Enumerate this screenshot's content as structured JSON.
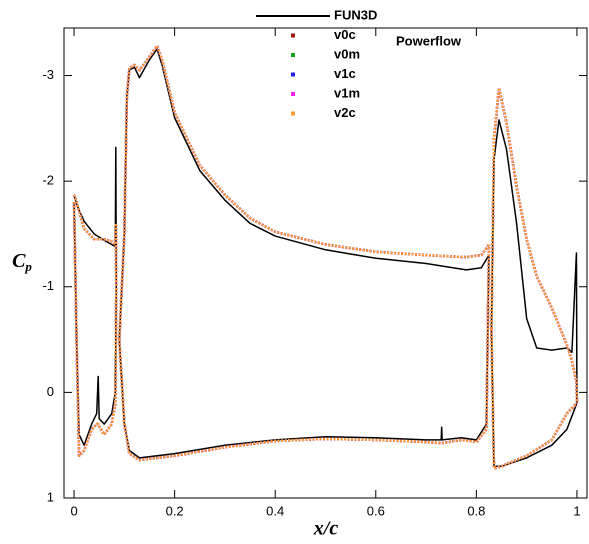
{
  "chart_data": {
    "type": "line",
    "x_label": "x/c",
    "y_label": [
      "C",
      "p"
    ],
    "annotation": "Powerflow",
    "xlim": [
      -0.02,
      1.02
    ],
    "ylim": [
      1,
      -3.45
    ],
    "xticks": [
      0,
      0.2,
      0.4,
      0.6,
      0.8,
      1
    ],
    "yticks": [
      -3,
      -2,
      -1,
      0,
      1
    ],
    "legend": "top",
    "x": [
      0,
      0.005,
      0.02,
      0.04,
      0.06,
      0.075,
      0.082,
      0.083,
      0.084,
      null,
      0.09,
      0.1,
      0.105,
      0.11,
      0.12,
      0.13,
      0.15,
      0.165,
      0.175,
      0.2,
      0.25,
      0.3,
      0.35,
      0.4,
      0.5,
      0.6,
      0.7,
      0.78,
      0.81,
      0.825,
      null,
      0.83,
      0.835,
      0.845,
      0.86,
      0.88,
      0.9,
      0.92,
      0.95,
      0.98,
      0.99,
      0.999,
      1.0,
      null,
      0,
      0.005,
      0.01,
      0.02,
      0.035,
      0.045,
      0.048,
      0.05,
      0.06,
      0.075,
      0.082,
      0.084,
      null,
      0.09,
      0.1,
      0.11,
      0.13,
      0.2,
      0.3,
      0.4,
      0.5,
      0.6,
      0.7,
      0.73,
      0.731,
      0.732,
      0.77,
      0.8,
      0.82,
      0.825,
      null,
      0.83,
      0.835,
      0.85,
      0.9,
      0.95,
      0.98,
      1.0
    ],
    "series": [
      {
        "name": "FUN3D",
        "color": "#000000",
        "style": "solid",
        "values": [
          -1.87,
          -1.78,
          -1.62,
          -1.5,
          -1.44,
          -1.4,
          -1.38,
          -2.32,
          -1.0,
          null,
          -0.5,
          -1.5,
          -2.8,
          -3.05,
          -3.08,
          -2.98,
          -3.15,
          -3.25,
          -3.1,
          -2.6,
          -2.1,
          -1.82,
          -1.6,
          -1.48,
          -1.35,
          -1.27,
          -1.22,
          -1.16,
          -1.18,
          -1.3,
          null,
          -0.6,
          -2.2,
          -2.58,
          -2.3,
          -1.6,
          -0.7,
          -0.42,
          -0.4,
          -0.42,
          -0.38,
          -1.32,
          0.1,
          null,
          -1.8,
          -0.5,
          0.4,
          0.5,
          0.3,
          0.2,
          -0.15,
          0.25,
          0.3,
          0.2,
          0.0,
          -1.0,
          null,
          -0.5,
          0.3,
          0.55,
          0.62,
          0.58,
          0.5,
          0.45,
          0.42,
          0.43,
          0.45,
          0.45,
          0.33,
          0.45,
          0.43,
          0.45,
          0.3,
          -1.3,
          null,
          -0.6,
          0.7,
          0.7,
          0.62,
          0.5,
          0.35,
          0.1
        ]
      },
      {
        "name": "v0c",
        "color": "#a01010",
        "style": "dotted",
        "values": [
          -1.87,
          -1.8,
          -1.55,
          -1.45,
          -1.45,
          -1.43,
          -1.4,
          -1.6,
          -1.0,
          null,
          -0.5,
          -1.5,
          -2.8,
          -3.07,
          -3.1,
          -3.05,
          -3.18,
          -3.28,
          -3.15,
          -2.65,
          -2.15,
          -1.87,
          -1.65,
          -1.52,
          -1.4,
          -1.33,
          -1.3,
          -1.28,
          -1.3,
          -1.4,
          null,
          -0.6,
          -2.4,
          -2.88,
          -2.55,
          -1.95,
          -1.45,
          -1.1,
          -0.8,
          -0.45,
          -0.3,
          -0.1,
          0.1,
          null,
          -1.8,
          -0.5,
          0.6,
          0.55,
          0.35,
          0.3,
          0.3,
          0.32,
          0.4,
          0.3,
          0.1,
          -1.0,
          null,
          -0.5,
          0.3,
          0.58,
          0.64,
          0.6,
          0.52,
          0.46,
          0.44,
          0.45,
          0.47,
          0.48,
          0.48,
          0.48,
          0.45,
          0.47,
          0.35,
          -1.4,
          null,
          -0.6,
          0.72,
          0.7,
          0.6,
          0.45,
          0.2,
          0.1
        ]
      },
      {
        "name": "v0m",
        "color": "#10a010",
        "style": "dotted",
        "values": [
          -1.87,
          -1.8,
          -1.55,
          -1.45,
          -1.45,
          -1.43,
          -1.4,
          -1.6,
          -1.0,
          null,
          -0.5,
          -1.5,
          -2.8,
          -3.07,
          -3.1,
          -3.05,
          -3.18,
          -3.28,
          -3.15,
          -2.65,
          -2.15,
          -1.87,
          -1.65,
          -1.52,
          -1.4,
          -1.33,
          -1.3,
          -1.28,
          -1.3,
          -1.4,
          null,
          -0.6,
          -2.4,
          -2.88,
          -2.55,
          -1.95,
          -1.45,
          -1.1,
          -0.8,
          -0.45,
          -0.3,
          -0.1,
          0.1,
          null,
          -1.8,
          -0.5,
          0.6,
          0.55,
          0.35,
          0.3,
          0.3,
          0.32,
          0.4,
          0.3,
          0.1,
          -1.0,
          null,
          -0.5,
          0.3,
          0.58,
          0.64,
          0.6,
          0.52,
          0.46,
          0.44,
          0.45,
          0.47,
          0.48,
          0.48,
          0.48,
          0.45,
          0.47,
          0.35,
          -1.4,
          null,
          -0.6,
          0.72,
          0.7,
          0.6,
          0.45,
          0.2,
          0.1
        ]
      },
      {
        "name": "v1c",
        "color": "#2020e0",
        "style": "dotted",
        "values": [
          -1.87,
          -1.8,
          -1.55,
          -1.45,
          -1.45,
          -1.43,
          -1.4,
          -1.6,
          -1.0,
          null,
          -0.5,
          -1.5,
          -2.8,
          -3.07,
          -3.1,
          -3.05,
          -3.18,
          -3.28,
          -3.15,
          -2.65,
          -2.15,
          -1.87,
          -1.65,
          -1.52,
          -1.4,
          -1.33,
          -1.3,
          -1.28,
          -1.3,
          -1.4,
          null,
          -0.6,
          -2.4,
          -2.88,
          -2.55,
          -1.95,
          -1.45,
          -1.1,
          -0.8,
          -0.45,
          -0.3,
          -0.1,
          0.1,
          null,
          -1.8,
          -0.5,
          0.6,
          0.55,
          0.35,
          0.3,
          0.3,
          0.32,
          0.4,
          0.3,
          0.1,
          -1.0,
          null,
          -0.5,
          0.3,
          0.58,
          0.64,
          0.6,
          0.52,
          0.46,
          0.44,
          0.45,
          0.47,
          0.48,
          0.48,
          0.48,
          0.45,
          0.47,
          0.35,
          -1.4,
          null,
          -0.6,
          0.72,
          0.7,
          0.6,
          0.45,
          0.2,
          0.1
        ]
      },
      {
        "name": "v1m",
        "color": "#ff20ff",
        "style": "dotted",
        "values": [
          -1.87,
          -1.8,
          -1.55,
          -1.45,
          -1.45,
          -1.43,
          -1.4,
          -1.6,
          -1.0,
          null,
          -0.5,
          -1.5,
          -2.8,
          -3.07,
          -3.1,
          -3.05,
          -3.18,
          -3.28,
          -3.15,
          -2.65,
          -2.15,
          -1.87,
          -1.65,
          -1.52,
          -1.4,
          -1.33,
          -1.3,
          -1.28,
          -1.3,
          -1.4,
          null,
          -0.6,
          -2.4,
          -2.88,
          -2.55,
          -1.95,
          -1.45,
          -1.1,
          -0.8,
          -0.45,
          -0.3,
          -0.1,
          0.1,
          null,
          -1.8,
          -0.5,
          0.6,
          0.55,
          0.35,
          0.3,
          0.3,
          0.32,
          0.4,
          0.3,
          0.1,
          -1.0,
          null,
          -0.5,
          0.3,
          0.58,
          0.64,
          0.6,
          0.52,
          0.46,
          0.44,
          0.45,
          0.47,
          0.48,
          0.48,
          0.48,
          0.45,
          0.47,
          0.35,
          -1.4,
          null,
          -0.6,
          0.72,
          0.7,
          0.6,
          0.45,
          0.2,
          0.1
        ]
      },
      {
        "name": "v2c",
        "color": "#ff9933",
        "style": "dotted",
        "values": [
          -1.87,
          -1.8,
          -1.55,
          -1.45,
          -1.45,
          -1.43,
          -1.4,
          -1.6,
          -1.0,
          null,
          -0.5,
          -1.5,
          -2.8,
          -3.07,
          -3.1,
          -3.05,
          -3.18,
          -3.28,
          -3.15,
          -2.65,
          -2.15,
          -1.87,
          -1.65,
          -1.52,
          -1.4,
          -1.33,
          -1.3,
          -1.28,
          -1.3,
          -1.4,
          null,
          -0.6,
          -2.4,
          -2.88,
          -2.55,
          -1.95,
          -1.45,
          -1.1,
          -0.8,
          -0.45,
          -0.3,
          -0.1,
          0.1,
          null,
          -1.8,
          -0.5,
          0.6,
          0.55,
          0.35,
          0.3,
          0.3,
          0.32,
          0.4,
          0.3,
          0.1,
          -1.0,
          null,
          -0.5,
          0.3,
          0.58,
          0.64,
          0.6,
          0.52,
          0.46,
          0.44,
          0.45,
          0.47,
          0.48,
          0.48,
          0.48,
          0.45,
          0.47,
          0.35,
          -1.4,
          null,
          -0.6,
          0.72,
          0.7,
          0.6,
          0.45,
          0.2,
          0.1
        ]
      }
    ]
  }
}
